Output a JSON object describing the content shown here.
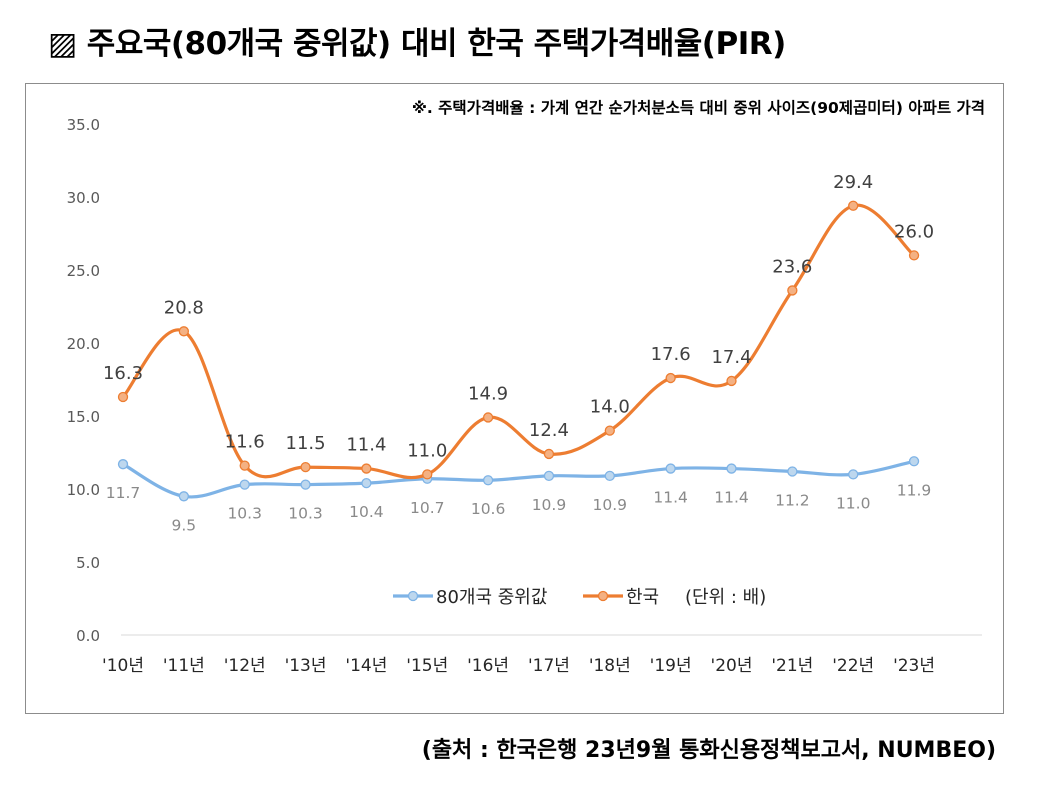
{
  "title": {
    "icon": "▨",
    "text": "주요국(80개국 중위값) 대비 한국 주택가격배율(PIR)"
  },
  "note": "※. 주택가격배율 : 가계 연간 순가처분소득 대비 중위 사이즈(90제곱미터) 아파트 가격",
  "source": "(출처 : 한국은행 23년9월 통화신용정책보고서, NUMBEO)",
  "colors": {
    "korea": "#ED7D31",
    "median": "#7EB3E6",
    "korea_label": "#404040",
    "median_label": "#8a8a8a",
    "axis_text": "#595959",
    "axis_line": "#d9d9d9"
  },
  "chart_data": {
    "type": "line",
    "categories": [
      "'10년",
      "'11년",
      "'12년",
      "'13년",
      "'14년",
      "'15년",
      "'16년",
      "'17년",
      "'18년",
      "'19년",
      "'20년",
      "'21년",
      "'22년",
      "'23년"
    ],
    "series": [
      {
        "name": "80개국 중위값",
        "values": [
          11.7,
          9.5,
          10.3,
          10.3,
          10.4,
          10.7,
          10.6,
          10.9,
          10.9,
          11.4,
          11.4,
          11.2,
          11.0,
          11.9
        ],
        "labels": [
          "11.7",
          "9.5",
          "10.3",
          "10.3",
          "10.4",
          "10.7",
          "10.6",
          "10.9",
          "10.9",
          "11.4",
          "11.4",
          "11.2",
          "11.0",
          "11.9"
        ]
      },
      {
        "name": "한국",
        "values": [
          16.3,
          20.8,
          11.6,
          11.5,
          11.4,
          11.0,
          14.9,
          12.4,
          14.0,
          17.6,
          17.4,
          23.6,
          29.4,
          26.0
        ],
        "labels": [
          "16.3",
          "20.8",
          "11.6",
          "11.5",
          "11.4",
          "11.0",
          "14.9",
          "12.4",
          "14.0",
          "17.6",
          "17.4",
          "23.6",
          "29.4",
          "26.0"
        ]
      }
    ],
    "y_ticks": [
      "0.0",
      "5.0",
      "10.0",
      "15.0",
      "20.0",
      "25.0",
      "30.0",
      "35.0"
    ],
    "ylim": [
      0,
      35
    ],
    "unit_note": "(단위 : 배)",
    "xlabel": "",
    "ylabel": ""
  }
}
